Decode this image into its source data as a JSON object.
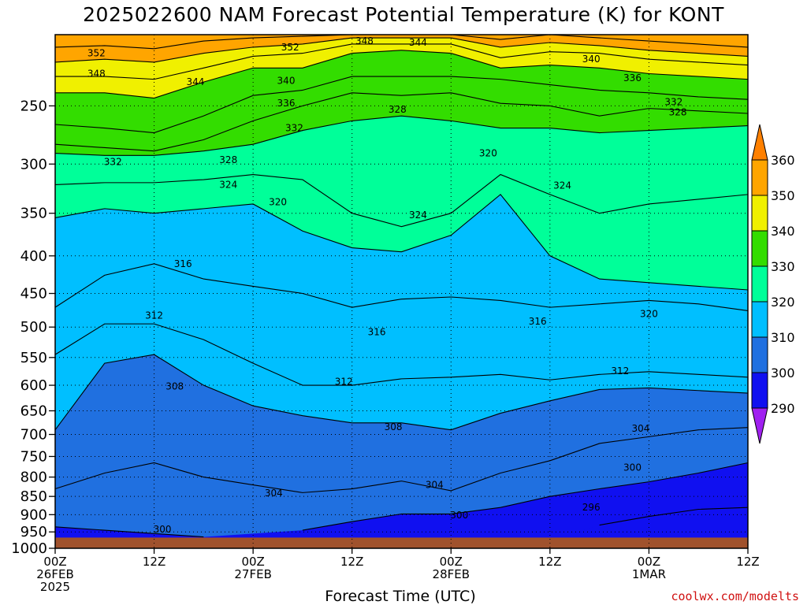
{
  "title": "2025022600 NAM Forecast Potential Temperature (K) for KONT",
  "xlabel": "Forecast Time (UTC)",
  "credit": "coolwx.com/modelts",
  "chart_data": {
    "type": "heatmap",
    "title": "2025022600 NAM Forecast Potential Temperature (K) for KONT",
    "xlabel": "Forecast Time (UTC)",
    "ylabel": "",
    "y_log": true,
    "ylim": [
      1000,
      200
    ],
    "xlim": [
      0,
      84
    ],
    "grid": true,
    "y_ticks": [
      250,
      300,
      350,
      400,
      450,
      500,
      550,
      600,
      650,
      700,
      750,
      800,
      850,
      900,
      950,
      1000
    ],
    "x_ticks": [
      {
        "t": 0,
        "l1": "00Z",
        "l2": "26FEB",
        "l3": "2025"
      },
      {
        "t": 12,
        "l1": "12Z",
        "l2": "",
        "l3": ""
      },
      {
        "t": 24,
        "l1": "00Z",
        "l2": "27FEB",
        "l3": ""
      },
      {
        "t": 36,
        "l1": "12Z",
        "l2": "",
        "l3": ""
      },
      {
        "t": 48,
        "l1": "00Z",
        "l2": "28FEB",
        "l3": ""
      },
      {
        "t": 60,
        "l1": "12Z",
        "l2": "",
        "l3": ""
      },
      {
        "t": 72,
        "l1": "00Z",
        "l2": "1MAR",
        "l3": ""
      },
      {
        "t": 84,
        "l1": "12Z",
        "l2": "",
        "l3": ""
      }
    ],
    "surface_pressure": 967,
    "surface_color": "#a0522d",
    "colorbar": {
      "levels": [
        290,
        300,
        310,
        320,
        330,
        340,
        350,
        360
      ],
      "colors": [
        "#a020f0",
        "#1010f0",
        "#2070e0",
        "#00bfff",
        "#00ff99",
        "#33dd00",
        "#f0f000",
        "#ffa500",
        "#ff8000"
      ]
    },
    "isentropes_K": {
      "t": [
        0,
        6,
        12,
        18,
        24,
        30,
        36,
        42,
        48,
        54,
        60,
        66,
        72,
        78,
        84
      ],
      "296": [
        null,
        null,
        null,
        null,
        null,
        null,
        null,
        null,
        null,
        null,
        975,
        930,
        905,
        885,
        880
      ],
      "300": [
        935,
        945,
        955,
        965,
        null,
        945,
        920,
        898,
        898,
        880,
        850,
        830,
        812,
        790,
        765
      ],
      "304": [
        830,
        790,
        765,
        800,
        820,
        840,
        830,
        810,
        835,
        790,
        760,
        720,
        705,
        690,
        685
      ],
      "308": [
        690,
        560,
        545,
        600,
        640,
        660,
        675,
        675,
        690,
        655,
        630,
        608,
        605,
        610,
        615
      ],
      "312": [
        545,
        495,
        495,
        520,
        560,
        600,
        600,
        588,
        585,
        580,
        590,
        580,
        575,
        580,
        585
      ],
      "316": [
        470,
        425,
        410,
        430,
        440,
        450,
        470,
        458,
        455,
        460,
        470,
        465,
        460,
        465,
        475
      ],
      "320": [
        355,
        345,
        350,
        345,
        340,
        370,
        390,
        395,
        375,
        330,
        400,
        430,
        435,
        440,
        445
      ],
      "324": [
        320,
        318,
        318,
        315,
        310,
        315,
        350,
        365,
        350,
        310,
        330,
        350,
        340,
        335,
        330
      ],
      "328": [
        290,
        292,
        292,
        288,
        282,
        270,
        262,
        258,
        262,
        268,
        268,
        272,
        270,
        268,
        266
      ],
      "332": [
        282,
        285,
        288,
        278,
        262,
        250,
        240,
        242,
        240,
        248,
        250,
        258,
        252,
        254,
        256
      ],
      "336": [
        265,
        268,
        272,
        258,
        242,
        238,
        228,
        228,
        228,
        230,
        234,
        238,
        240,
        243,
        245
      ],
      "340": [
        240,
        240,
        244,
        232,
        222,
        222,
        212,
        210,
        212,
        222,
        220,
        222,
        226,
        228,
        230
      ],
      "344": [
        228,
        228,
        230,
        222,
        214,
        212,
        206,
        206,
        206,
        215,
        211,
        212,
        216,
        218,
        220
      ],
      "348": [
        218,
        216,
        218,
        212,
        208,
        206,
        202,
        202,
        202,
        208,
        205,
        207,
        210,
        212,
        214
      ],
      "352": [
        208,
        207,
        209,
        204,
        202,
        201,
        200,
        200,
        200,
        203,
        200,
        202,
        204,
        206,
        208
      ]
    },
    "contour_labels": [
      {
        "v": "352",
        "t": 5,
        "p": 212
      },
      {
        "v": "348",
        "t": 5,
        "p": 226
      },
      {
        "v": "352",
        "t": 28.5,
        "p": 208
      },
      {
        "v": "348",
        "t": 37.5,
        "p": 204
      },
      {
        "v": "344",
        "t": 44,
        "p": 205
      },
      {
        "v": "344",
        "t": 17,
        "p": 232
      },
      {
        "v": "340",
        "t": 28,
        "p": 231
      },
      {
        "v": "336",
        "t": 28,
        "p": 248
      },
      {
        "v": "332",
        "t": 29,
        "p": 268
      },
      {
        "v": "328",
        "t": 41.5,
        "p": 253
      },
      {
        "v": "340",
        "t": 65,
        "p": 216
      },
      {
        "v": "336",
        "t": 70,
        "p": 229
      },
      {
        "v": "332",
        "t": 75,
        "p": 247
      },
      {
        "v": "328",
        "t": 75.5,
        "p": 255
      },
      {
        "v": "332",
        "t": 7,
        "p": 298
      },
      {
        "v": "328",
        "t": 21,
        "p": 296
      },
      {
        "v": "324",
        "t": 21,
        "p": 320
      },
      {
        "v": "320",
        "t": 27,
        "p": 338
      },
      {
        "v": "324",
        "t": 44,
        "p": 352
      },
      {
        "v": "320",
        "t": 52.5,
        "p": 290
      },
      {
        "v": "324",
        "t": 61.5,
        "p": 321
      },
      {
        "v": "316",
        "t": 15.5,
        "p": 410
      },
      {
        "v": "312",
        "t": 12,
        "p": 482
      },
      {
        "v": "316",
        "t": 39,
        "p": 508
      },
      {
        "v": "316",
        "t": 58.5,
        "p": 491
      },
      {
        "v": "320",
        "t": 72,
        "p": 480
      },
      {
        "v": "312",
        "t": 35,
        "p": 593
      },
      {
        "v": "312",
        "t": 68.5,
        "p": 574
      },
      {
        "v": "308",
        "t": 14.5,
        "p": 602
      },
      {
        "v": "308",
        "t": 41,
        "p": 684
      },
      {
        "v": "304",
        "t": 71,
        "p": 687
      },
      {
        "v": "304",
        "t": 26.5,
        "p": 841
      },
      {
        "v": "304",
        "t": 46,
        "p": 820
      },
      {
        "v": "300",
        "t": 70,
        "p": 776
      },
      {
        "v": "296",
        "t": 65,
        "p": 880
      },
      {
        "v": "300",
        "t": 49,
        "p": 902
      },
      {
        "v": "300",
        "t": 13,
        "p": 942
      }
    ]
  }
}
